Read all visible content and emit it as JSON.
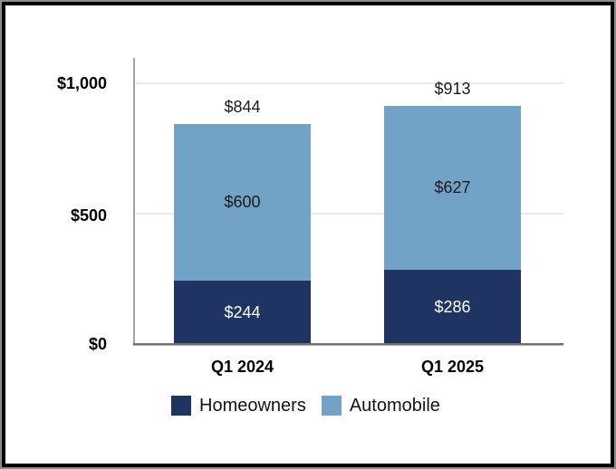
{
  "chart_data": {
    "type": "bar",
    "stacked": true,
    "title": "",
    "categories": [
      "Q1 2024",
      "Q1 2025"
    ],
    "series": [
      {
        "name": "Homeowners",
        "color": "#1F3462",
        "label_color": "#FFFFFF",
        "values": [
          244,
          286
        ],
        "value_labels": [
          "$244",
          "$286"
        ]
      },
      {
        "name": "Automobile",
        "color": "#72A3C6",
        "label_color": "#1A1A1A",
        "values": [
          600,
          627
        ],
        "value_labels": [
          "$600",
          "$627"
        ]
      }
    ],
    "totals": [
      844,
      913
    ],
    "total_labels": [
      "$844",
      "$913"
    ],
    "ylim": [
      0,
      1000
    ],
    "yticks": [
      {
        "value": 0,
        "label": "$0"
      },
      {
        "value": 500,
        "label": "$500"
      },
      {
        "value": 1000,
        "label": "$1,000"
      }
    ],
    "gridline_values": [
      500,
      1000
    ],
    "grid": "horizontal",
    "legend_position": "bottom"
  },
  "colors": {
    "homeowners": "#1F3462",
    "automobile": "#72A3C6",
    "gridline": "#E9E9E9",
    "axis_line": "#A3A3A3",
    "baseline": "#707070",
    "frame_black": "#000000",
    "frame_gray": "#8C8C8C",
    "background": "#FFFFFF",
    "text": "#000000"
  }
}
